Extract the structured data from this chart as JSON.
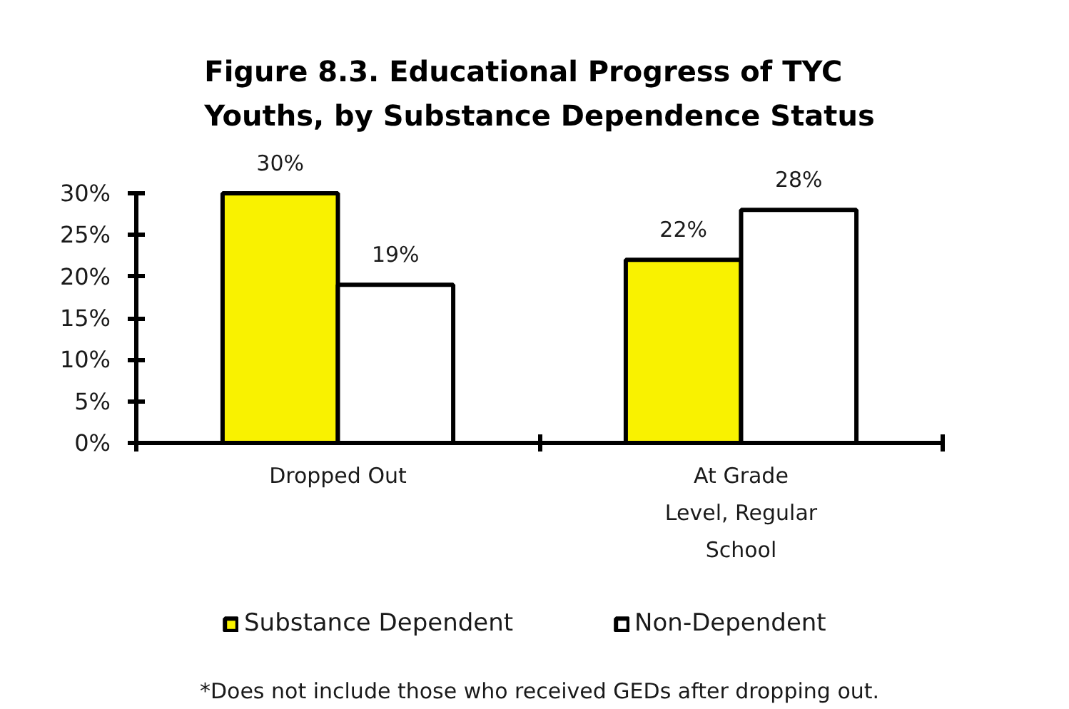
{
  "chart_data": {
    "type": "bar",
    "title": "Figure 8.3. Educational Progress of TYC Youths, by Substance Dependence Status",
    "categories": [
      "Dropped Out",
      "At Grade Level, Regular School"
    ],
    "series": [
      {
        "name": "Substance Dependent",
        "color": "#f9f200",
        "values": [
          30,
          22
        ],
        "value_labels": [
          "30%",
          "22%"
        ]
      },
      {
        "name": "Non-Dependent",
        "color": "#ffffff",
        "values": [
          19,
          28
        ],
        "value_labels": [
          "19%",
          "28%"
        ]
      }
    ],
    "ylim": [
      0,
      30
    ],
    "yticks": [
      {
        "value": 0,
        "label": "0%"
      },
      {
        "value": 5,
        "label": "5%"
      },
      {
        "value": 10,
        "label": "10%"
      },
      {
        "value": 15,
        "label": "15%"
      },
      {
        "value": 20,
        "label": "20%"
      },
      {
        "value": 25,
        "label": "25%"
      },
      {
        "value": 30,
        "label": "30%"
      }
    ],
    "grid": false,
    "legend": "bottom",
    "annotations": [
      "*Does not include those who received GEDs after dropping out."
    ]
  }
}
